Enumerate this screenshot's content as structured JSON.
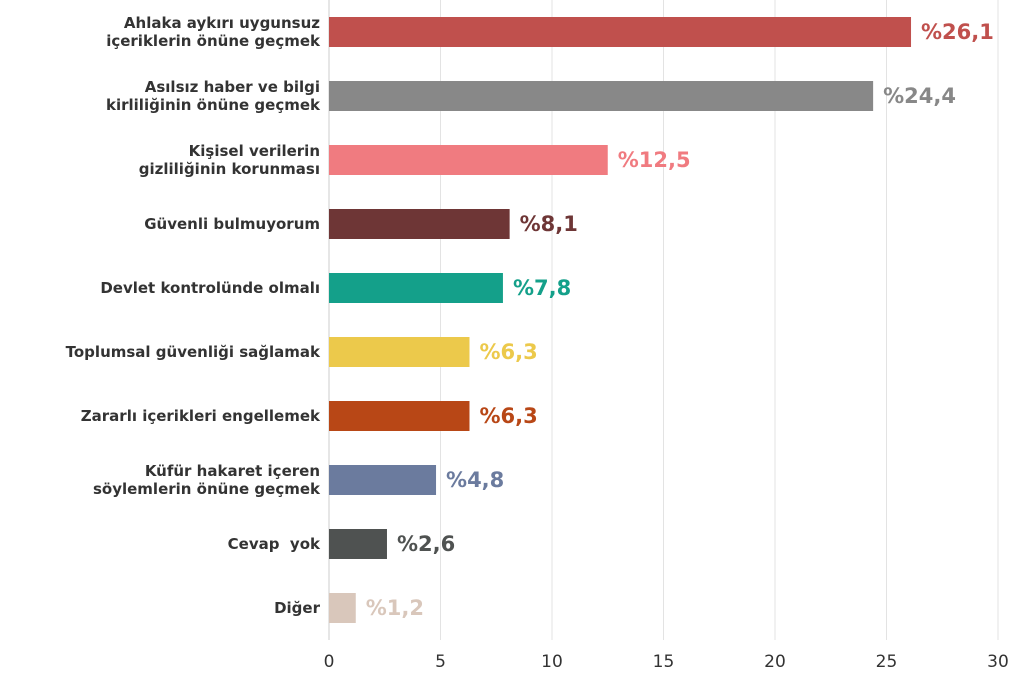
{
  "chart_data": {
    "type": "barh",
    "categories": [
      [
        "Ahlaka aykırı uygunsuz",
        "içeriklerin önüne geçmek"
      ],
      [
        "Asılsız haber ve bilgi",
        "kirliliğinin önüne geçmek"
      ],
      [
        "Kişisel verilerin",
        "gizliliğinin korunması"
      ],
      [
        "Güvenli bulmuyorum"
      ],
      [
        "Devlet kontrolünde olmalı"
      ],
      [
        "Toplumsal güvenliği sağlamak"
      ],
      [
        "Zararlı içerikleri engellemek"
      ],
      [
        "Küfür hakaret içeren",
        "söylemlerin önüne geçmek"
      ],
      [
        "Cevap  yok"
      ],
      [
        "Diğer"
      ]
    ],
    "values": [
      26.1,
      24.4,
      12.5,
      8.1,
      7.8,
      6.3,
      6.3,
      4.8,
      2.6,
      1.2
    ],
    "value_labels": [
      "%26,1",
      "%24,4",
      "%12,5",
      "%8,1",
      "%7,8",
      "%6,3",
      "%6,3",
      "%4,8",
      "%2,6",
      "%1,2"
    ],
    "colors": [
      "#c0504d",
      "#888888",
      "#f07b80",
      "#6e3636",
      "#14a08a",
      "#ecc94b",
      "#b84716",
      "#6b7b9e",
      "#4f5251",
      "#d9c7bb"
    ],
    "xlim": [
      0,
      30
    ],
    "xticks": [
      0,
      5,
      10,
      15,
      20,
      25,
      30
    ],
    "grid": true
  }
}
